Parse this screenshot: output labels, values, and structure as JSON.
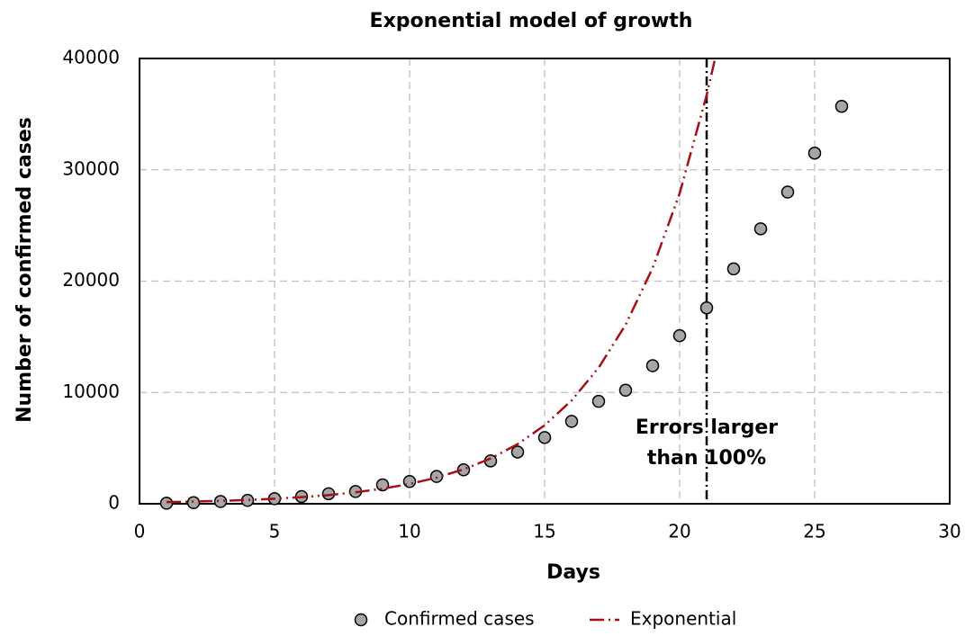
{
  "chart_data": {
    "type": "scatter",
    "title": "Exponential model of growth",
    "x_label": "Days",
    "y_label": "Number of confirmed cases",
    "xlim": [
      0,
      30
    ],
    "ylim": [
      0,
      40000
    ],
    "xticks": [
      0,
      5,
      10,
      15,
      20,
      25,
      30
    ],
    "yticks": [
      0,
      10000,
      20000,
      30000,
      40000
    ],
    "grid": true,
    "legend": "bottom",
    "series": [
      {
        "name": "Confirmed cases",
        "type": "scatter",
        "color": "#a6a6a6",
        "x": [
          1,
          2,
          3,
          4,
          5,
          6,
          7,
          8,
          9,
          10,
          11,
          12,
          13,
          14,
          15,
          16,
          17,
          18,
          19,
          20,
          21,
          22,
          23,
          24,
          25,
          26
        ],
        "values": [
          50,
          100,
          200,
          300,
          450,
          650,
          900,
          1100,
          1700,
          2000,
          2450,
          3050,
          3850,
          4650,
          5950,
          7400,
          9200,
          10200,
          12400,
          15100,
          17600,
          21100,
          24700,
          28000,
          31500,
          35700
        ]
      },
      {
        "name": "Exponential",
        "type": "line",
        "color": "#a50f15",
        "x": [
          1,
          2,
          3,
          4,
          5,
          6,
          7,
          8,
          9,
          10,
          11,
          12,
          13,
          14,
          15,
          16,
          17,
          18,
          19,
          20,
          21,
          21.3
        ],
        "values": [
          150,
          198,
          260,
          342,
          451,
          593,
          781,
          1028,
          1354,
          1782,
          2347,
          3089,
          4067,
          5354,
          7049,
          9280,
          12218,
          16085,
          21177,
          27880,
          36705,
          39860
        ]
      }
    ],
    "vline": {
      "x": 21,
      "color": "#000000"
    },
    "annotation": {
      "text": [
        "Errors larger",
        "than 100%"
      ]
    }
  }
}
